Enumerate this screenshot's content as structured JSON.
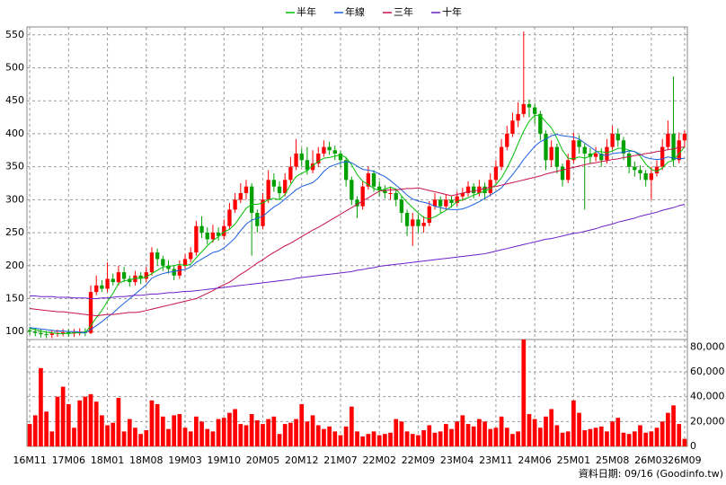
{
  "chart_data": {
    "type": "candlestick",
    "categories": [
      "16M11",
      null,
      null,
      null,
      null,
      null,
      null,
      "17M06",
      null,
      null,
      null,
      null,
      null,
      null,
      "18M01",
      null,
      null,
      null,
      null,
      null,
      null,
      "18M08",
      null,
      null,
      null,
      null,
      null,
      null,
      "19M03",
      null,
      null,
      null,
      null,
      null,
      null,
      "19M10",
      null,
      null,
      null,
      null,
      null,
      null,
      "20M05",
      null,
      null,
      null,
      null,
      null,
      null,
      "20M12",
      null,
      null,
      null,
      null,
      null,
      null,
      "21M07",
      null,
      null,
      null,
      null,
      null,
      null,
      "22M02",
      null,
      null,
      null,
      null,
      null,
      null,
      "22M09",
      null,
      null,
      null,
      null,
      null,
      null,
      "23M04",
      null,
      null,
      null,
      null,
      null,
      null,
      "23M11",
      null,
      null,
      null,
      null,
      null,
      null,
      "24M06",
      null,
      null,
      null,
      null,
      null,
      null,
      "25M01",
      null,
      null,
      null,
      null,
      null,
      null,
      "25M08",
      null,
      null,
      null,
      null,
      null,
      null,
      "26M03",
      null,
      null,
      null,
      null,
      null,
      "26M09"
    ],
    "up_color": "#ff0000",
    "down_color": "#00a000",
    "open": [
      102,
      100,
      98,
      96,
      95,
      97,
      98,
      99,
      97,
      99,
      100,
      98,
      160,
      170,
      165,
      180,
      175,
      190,
      180,
      175,
      185,
      180,
      190,
      220,
      210,
      200,
      195,
      185,
      200,
      210,
      220,
      260,
      250,
      240,
      250,
      245,
      260,
      285,
      300,
      310,
      320,
      280,
      260,
      300,
      330,
      320,
      310,
      330,
      350,
      370,
      360,
      345,
      355,
      370,
      380,
      375,
      370,
      360,
      330,
      300,
      290,
      320,
      340,
      320,
      315,
      310,
      310,
      300,
      280,
      260,
      270,
      260,
      265,
      290,
      300,
      290,
      300,
      295,
      305,
      310,
      320,
      310,
      320,
      310,
      330,
      350,
      380,
      400,
      420,
      430,
      445,
      440,
      430,
      400,
      360,
      380,
      350,
      330,
      360,
      390,
      380,
      370,
      365,
      370,
      360,
      380,
      400,
      390,
      370,
      350,
      345,
      340,
      330,
      340,
      350,
      380,
      400,
      360,
      390
    ],
    "high": [
      107,
      105,
      103,
      101,
      102,
      103,
      104,
      104,
      104,
      105,
      105,
      170,
      185,
      178,
      205,
      188,
      200,
      198,
      185,
      192,
      190,
      198,
      228,
      226,
      215,
      208,
      200,
      208,
      218,
      228,
      268,
      275,
      258,
      262,
      258,
      270,
      295,
      310,
      325,
      330,
      325,
      285,
      310,
      345,
      340,
      328,
      340,
      365,
      392,
      378,
      380,
      375,
      380,
      390,
      388,
      382,
      375,
      365,
      335,
      305,
      328,
      350,
      345,
      328,
      322,
      320,
      316,
      305,
      285,
      280,
      278,
      275,
      298,
      310,
      305,
      308,
      306,
      312,
      318,
      328,
      325,
      330,
      326,
      340,
      360,
      392,
      412,
      432,
      448,
      555,
      452,
      445,
      435,
      405,
      390,
      385,
      355,
      370,
      402,
      398,
      385,
      378,
      380,
      378,
      392,
      412,
      408,
      395,
      375,
      358,
      352,
      345,
      350,
      360,
      392,
      420,
      487,
      402,
      405
    ],
    "low": [
      95,
      93,
      91,
      90,
      90,
      92,
      93,
      92,
      92,
      94,
      93,
      96,
      155,
      160,
      160,
      170,
      170,
      175,
      168,
      170,
      172,
      175,
      185,
      200,
      192,
      188,
      178,
      180,
      195,
      205,
      215,
      242,
      232,
      235,
      238,
      240,
      255,
      280,
      295,
      300,
      215,
      250,
      255,
      295,
      312,
      300,
      305,
      325,
      345,
      350,
      338,
      340,
      350,
      365,
      368,
      360,
      350,
      320,
      292,
      272,
      285,
      315,
      312,
      305,
      302,
      300,
      290,
      265,
      245,
      230,
      250,
      250,
      260,
      285,
      280,
      285,
      288,
      290,
      298,
      305,
      302,
      305,
      300,
      305,
      325,
      345,
      375,
      395,
      410,
      425,
      425,
      415,
      390,
      345,
      350,
      340,
      320,
      325,
      355,
      370,
      285,
      355,
      358,
      350,
      355,
      375,
      380,
      360,
      340,
      335,
      330,
      320,
      300,
      335,
      345,
      375,
      350,
      355,
      380
    ],
    "close": [
      100,
      98,
      96,
      95,
      97,
      98,
      99,
      97,
      99,
      100,
      98,
      160,
      170,
      165,
      180,
      175,
      190,
      180,
      175,
      185,
      180,
      190,
      220,
      210,
      200,
      195,
      185,
      200,
      210,
      220,
      260,
      250,
      240,
      250,
      245,
      260,
      285,
      300,
      310,
      320,
      280,
      260,
      300,
      330,
      320,
      310,
      330,
      350,
      370,
      360,
      345,
      355,
      370,
      380,
      375,
      370,
      360,
      330,
      300,
      290,
      320,
      340,
      320,
      315,
      310,
      310,
      300,
      280,
      260,
      270,
      260,
      265,
      290,
      300,
      290,
      300,
      295,
      305,
      310,
      320,
      310,
      320,
      310,
      330,
      350,
      380,
      400,
      420,
      430,
      445,
      440,
      430,
      400,
      360,
      380,
      350,
      330,
      360,
      390,
      380,
      370,
      365,
      370,
      360,
      380,
      400,
      390,
      370,
      350,
      345,
      340,
      330,
      340,
      350,
      380,
      400,
      360,
      390,
      400
    ],
    "series": [
      {
        "name": "半年",
        "color": "#00c000",
        "values": [
          105,
          103,
          101,
          99,
          98,
          97,
          97,
          97,
          98,
          98,
          98,
          109,
          121,
          132,
          146,
          158,
          173,
          177,
          178,
          181,
          181,
          183,
          188,
          193,
          198,
          199,
          200,
          202,
          200,
          202,
          212,
          221,
          230,
          238,
          244,
          251,
          255,
          263,
          275,
          287,
          293,
          293,
          295,
          300,
          302,
          300,
          308,
          323,
          335,
          340,
          344,
          352,
          358,
          363,
          364,
          366,
          368,
          364,
          353,
          338,
          328,
          323,
          317,
          314,
          316,
          319,
          316,
          306,
          296,
          288,
          280,
          273,
          271,
          274,
          279,
          284,
          290,
          297,
          300,
          303,
          307,
          310,
          313,
          317,
          323,
          333,
          348,
          365,
          385,
          404,
          419,
          428,
          428,
          418,
          409,
          393,
          375,
          363,
          362,
          365,
          363,
          366,
          373,
          373,
          371,
          374,
          378,
          378,
          375,
          373,
          366,
          354,
          346,
          343,
          348,
          357,
          360,
          370,
          380
        ]
      },
      {
        "name": "年線",
        "color": "#1a5fe0",
        "values": [
          106,
          105,
          104,
          103,
          102,
          101,
          101,
          100,
          100,
          99,
          98,
          103,
          109,
          115,
          122,
          128,
          136,
          143,
          150,
          157,
          164,
          171,
          181,
          185,
          188,
          190,
          191,
          193,
          194,
          198,
          205,
          210,
          215,
          220,
          222,
          227,
          234,
          242,
          253,
          263,
          269,
          272,
          275,
          282,
          289,
          294,
          301,
          308,
          315,
          320,
          323,
          326,
          333,
          343,
          350,
          353,
          356,
          358,
          356,
          351,
          346,
          345,
          343,
          339,
          335,
          329,
          322,
          315,
          307,
          301,
          298,
          296,
          294,
          290,
          288,
          286,
          285,
          285,
          286,
          289,
          293,
          297,
          302,
          307,
          312,
          318,
          328,
          338,
          349,
          361,
          371,
          381,
          388,
          392,
          397,
          399,
          397,
          396,
          395,
          392,
          386,
          380,
          374,
          368,
          367,
          370,
          371,
          372,
          374,
          373,
          369,
          364,
          362,
          361,
          362,
          365,
          363,
          362,
          363
        ]
      },
      {
        "name": "三年",
        "color": "#c8104a",
        "values": [
          135,
          134,
          133,
          132,
          131,
          130,
          130,
          129,
          128,
          127,
          126,
          125,
          124,
          125,
          126,
          126,
          127,
          128,
          129,
          129,
          130,
          132,
          134,
          136,
          138,
          140,
          142,
          144,
          146,
          148,
          150,
          154,
          158,
          162,
          167,
          171,
          175,
          181,
          187,
          192,
          198,
          204,
          209,
          215,
          220,
          225,
          230,
          234,
          239,
          244,
          249,
          254,
          258,
          263,
          268,
          273,
          278,
          283,
          288,
          293,
          298,
          303,
          308,
          313,
          314,
          315,
          315,
          316,
          317,
          317,
          318,
          316,
          314,
          312,
          310,
          308,
          306,
          308,
          310,
          312,
          313,
          315,
          317,
          319,
          320,
          322,
          324,
          326,
          328,
          330,
          332,
          334,
          336,
          339,
          341,
          343,
          345,
          347,
          349,
          351,
          353,
          355,
          356,
          358,
          359,
          361,
          362,
          364,
          365,
          367,
          368,
          370,
          371,
          373,
          374,
          376,
          377,
          379,
          380
        ]
      },
      {
        "name": "十年",
        "color": "#6a1fc8",
        "values": [
          154,
          154,
          153,
          153,
          153,
          152,
          152,
          152,
          151,
          151,
          151,
          150,
          150,
          151,
          151,
          152,
          153,
          153,
          154,
          155,
          155,
          156,
          157,
          157,
          158,
          159,
          159,
          160,
          161,
          161,
          162,
          163,
          164,
          165,
          166,
          167,
          168,
          169,
          170,
          171,
          172,
          173,
          174,
          175,
          176,
          177,
          178,
          179,
          181,
          182,
          183,
          184,
          185,
          186,
          187,
          188,
          189,
          190,
          191,
          193,
          194,
          196,
          197,
          199,
          200,
          201,
          202,
          203,
          204,
          205,
          206,
          207,
          208,
          209,
          210,
          211,
          212,
          213,
          214,
          215,
          216,
          217,
          218,
          220,
          222,
          224,
          226,
          228,
          230,
          232,
          234,
          236,
          238,
          240,
          241,
          243,
          245,
          247,
          249,
          250,
          252,
          254,
          256,
          259,
          261,
          263,
          266,
          268,
          270,
          272,
          275,
          277,
          279,
          281,
          284,
          286,
          288,
          291,
          293
        ]
      }
    ],
    "ylim": [
      88,
      562
    ],
    "yticks": [
      100,
      150,
      200,
      250,
      300,
      350,
      400,
      450,
      500,
      550
    ],
    "grid": true,
    "volume": {
      "color": "#ff0000",
      "values": [
        18000,
        25000,
        63000,
        28000,
        12000,
        40000,
        48000,
        34000,
        15000,
        37000,
        40000,
        42000,
        36000,
        25000,
        17000,
        19000,
        39000,
        12000,
        22000,
        15000,
        10000,
        13000,
        37000,
        34000,
        24000,
        14000,
        25000,
        26000,
        15000,
        12000,
        24000,
        20000,
        14000,
        12000,
        22000,
        23000,
        27000,
        30000,
        18000,
        17000,
        26000,
        21000,
        18000,
        22000,
        24000,
        10000,
        18000,
        19000,
        22000,
        34000,
        20000,
        25000,
        17000,
        14000,
        16000,
        12000,
        9000,
        16000,
        32000,
        12000,
        8000,
        10000,
        12000,
        9000,
        10000,
        11000,
        22000,
        20000,
        12000,
        10000,
        9000,
        13000,
        17000,
        11000,
        12000,
        18000,
        14000,
        20000,
        25000,
        18000,
        16000,
        22000,
        20000,
        14000,
        15000,
        24000,
        15000,
        10000,
        12000,
        86000,
        26000,
        22000,
        15000,
        24000,
        30000,
        17000,
        11000,
        12000,
        37000,
        27000,
        13000,
        14000,
        15000,
        16000,
        12000,
        20000,
        23000,
        11000,
        10000,
        12000,
        17000,
        11000,
        12000,
        15000,
        20000,
        27000,
        33000,
        18000,
        6000
      ],
      "ylim": [
        0,
        86000
      ],
      "yticks": [
        0,
        {
          "value": 20000,
          "label": "20,000"
        },
        {
          "value": 40000,
          "label": "40,000"
        },
        {
          "value": 60000,
          "label": "60,000"
        },
        {
          "value": 80000,
          "label": "80,000"
        }
      ]
    },
    "footnote": "資料日期: 09/16 (Goodinfo.tw)"
  }
}
